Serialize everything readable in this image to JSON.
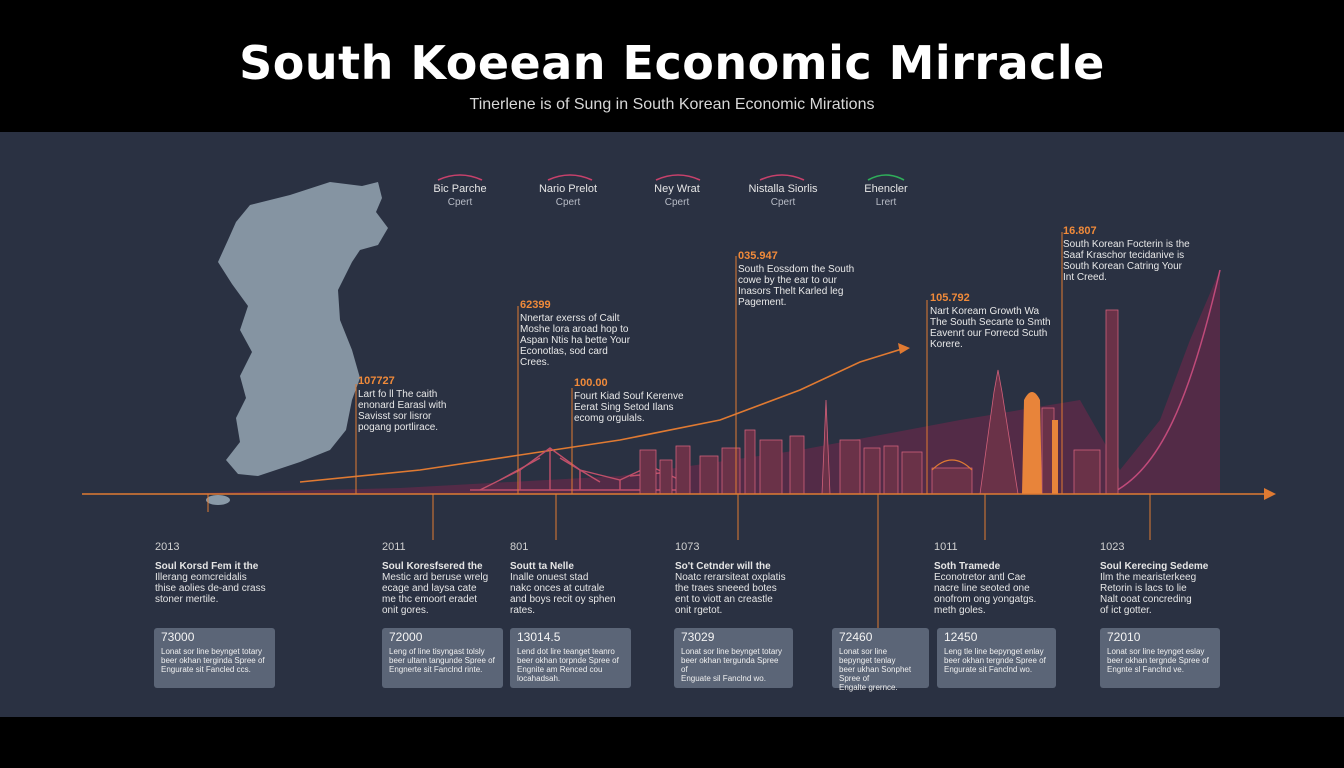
{
  "header": {
    "title": "South Koeean Economic Mirracle",
    "subtitle": "Tinerlene is of Sung in South Korean Economic Mirations"
  },
  "legend": [
    {
      "label": "Bic Parche",
      "sub": "Cpert",
      "color": "#c7416b"
    },
    {
      "label": "Nario Prelot",
      "sub": "Cpert",
      "color": "#c7416b"
    },
    {
      "label": "Ney Wrat",
      "sub": "Cpert",
      "color": "#c7416b"
    },
    {
      "label": "Nistalla Siorlis",
      "sub": "Cpert",
      "color": "#c7416b"
    },
    {
      "label": "Ehencler",
      "sub": "Lrert",
      "color": "#2fae5a"
    }
  ],
  "annotations": [
    {
      "num": "107727",
      "text": "Lart fo ll The caith\nenonard Earasl with\nSavisst sor lisror\npogang portlirace."
    },
    {
      "num": "62399",
      "text": "Nnertar exerss of Cailt\nMoshe lora aroad hop to\nAspan Ntis ha bette Your\nEconotlas, sod card\nCrees."
    },
    {
      "num": "100.00",
      "text": "Fourt Kiad Souf Kerenve\nEerat Sing Setod Ilans\necomg orgulals."
    },
    {
      "num": "035.947",
      "text": "South Eossdom the South\ncowe by the ear to our\nInasors Thelt Karled leg\nPagement."
    },
    {
      "num": "105.792",
      "text": "Nart Koream Growth Wa\nThe South Secarte to Smth\nEavenrt our Forrecd Scuth\nKorere."
    },
    {
      "num": "16.807",
      "text": "South Korean Focterin is the\nSaaf Kraschor tecidanive is\nSouth Korean Catring Your\nInt Creed."
    }
  ],
  "events": [
    {
      "year": "2013",
      "head": "Soul Korsd Fem it the",
      "text": "Illerang eomcreidalis\nthise aolies de-and crass\nstoner mertile."
    },
    {
      "year": "2011",
      "head": "Soul Koresfsered the",
      "text": "Mestic ard beruse wrelg\necage and laysa cate\nme thc emoort eradet\nonit gores."
    },
    {
      "year": "801",
      "head": "Soutt ta Nelle",
      "text": "Inalle onuest stad\nnakc onces at cutrale\nand boys recit oy sphen\nrates."
    },
    {
      "year": "1073",
      "head": "So't Cetnder will the",
      "text": "Noatc rerarsiteat oxplatis\nthe traes sneeed botes\nent to viott an creastle\nonit rgetot."
    },
    {
      "year": "1011",
      "head": "Soth Tramede",
      "text": "Econotretor antl Cae\nnacre line seoted one\nonofrom ong yongatgs.\nmeth goles."
    },
    {
      "year": "1023",
      "head": "Soul Kerecing Sedeme",
      "text": "Ilm the mearisterkeeg\nRetorin is lacs to lie\nNalt ooat concreding\nof ict gotter."
    }
  ],
  "cards": [
    {
      "value": "73000",
      "text": "Lonat sor line beynget totary\nbeer okhan terginda Spree of\nEngurate sit Fancled ccs."
    },
    {
      "value": "72000",
      "text": "Leng of line tisyngast tolsly\nbeer ultam tangunde Spree of\nEngnerte sit Fanclnd rinte."
    },
    {
      "value": "13014.5",
      "text": "Lend dot lire teanget teanro\nbeer okhan torpnde Spree of\nEngnite am Renced cou\nlocahadsah."
    },
    {
      "value": "73029",
      "text": "Lonat sor line beynget totary\nbeer okhan tergunda Spree of\nEnguate sil Fanclnd wo."
    },
    {
      "value": "72460",
      "text": "Lonat sor line bepynget tenlay\nbeer ukhan Sonphet Spree of\nEngalte grernce."
    },
    {
      "value": "12450",
      "text": "Leng tle line bepynget enlay\nbeer okhan tergnde Spree of\nEngurate sit Fanclnd wo."
    },
    {
      "value": "72010",
      "text": "Lonat sor line teynget eslay\nbeer okhan tergnde Spree of\nEngnte sl Fanclnd ve."
    }
  ],
  "colors": {
    "panel": "#2a3142",
    "timeline": "#e07a32",
    "accent_orange": "#f08a3a",
    "accent_magenta": "#b23a6c",
    "map": "#8a9aa8"
  }
}
